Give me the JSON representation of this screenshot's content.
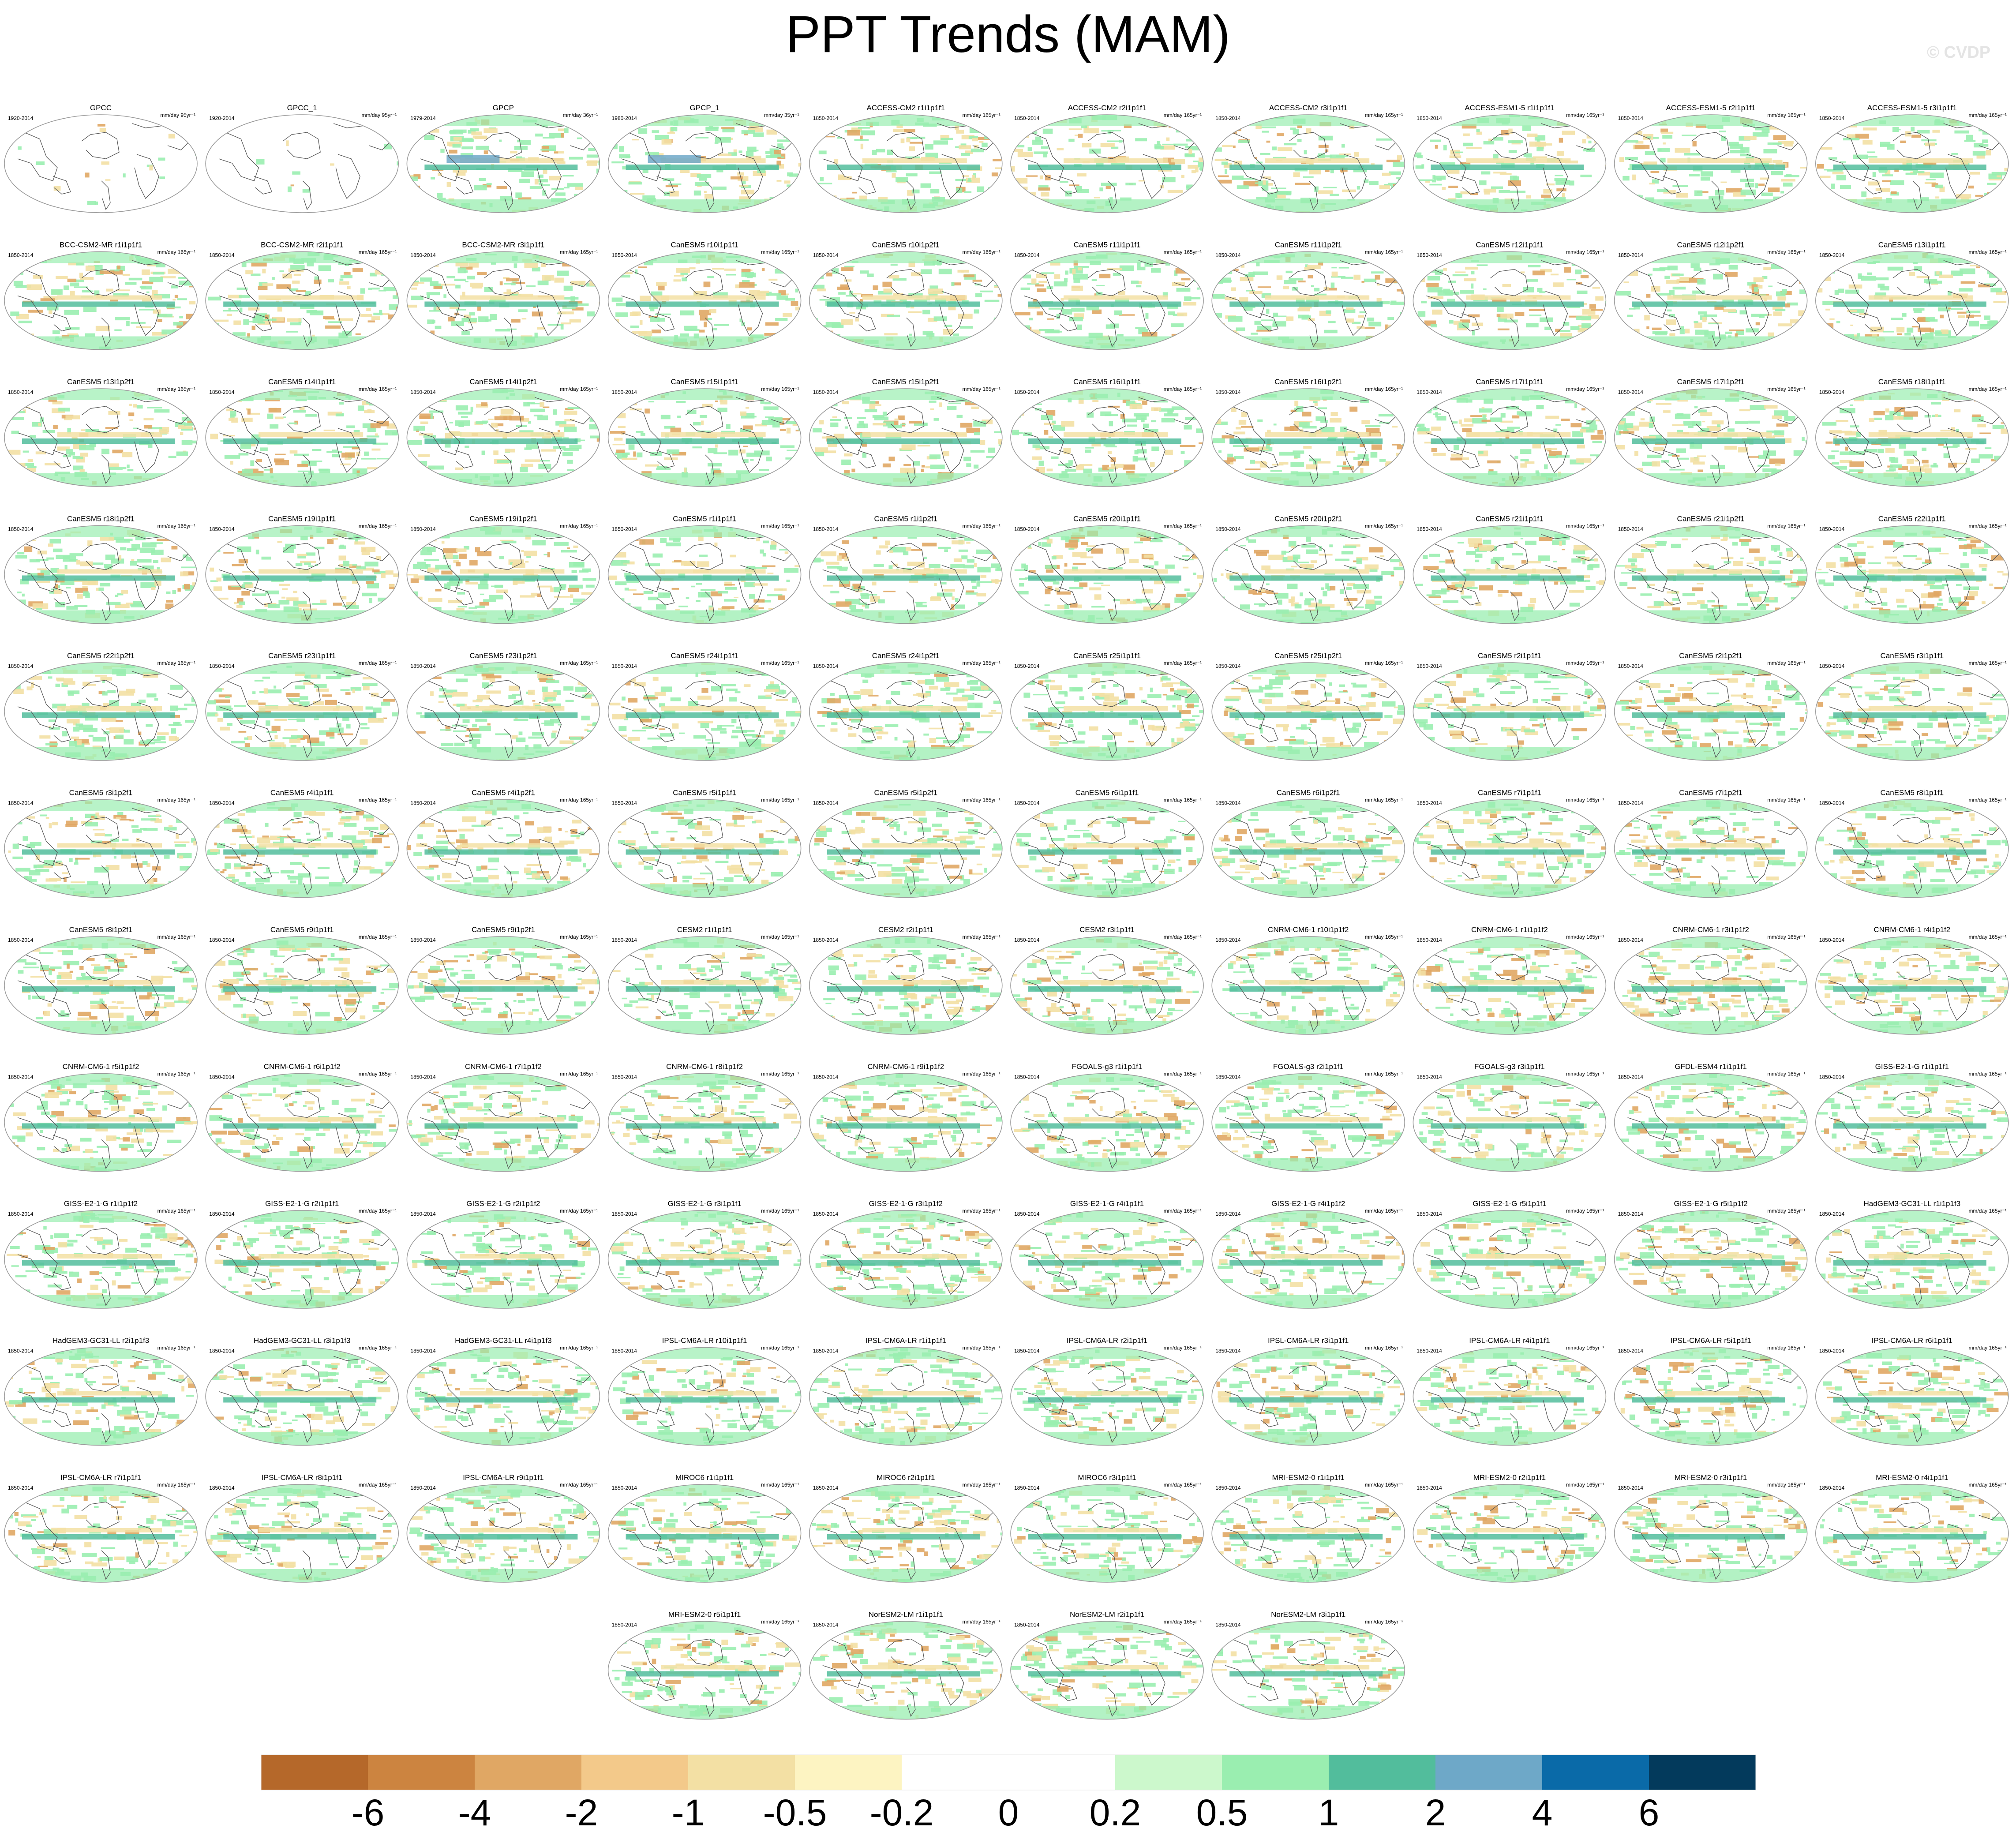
{
  "title": "PPT Trends (MAM)",
  "watermark": "© CVDP",
  "chart_data": {
    "type": "map-panels",
    "projection": "Robinson (global, centered on Pacific)",
    "variable": "Precipitation trend",
    "season": "MAM",
    "panels": [
      {
        "label": "GPCC",
        "period": "1920-2014",
        "units": "mm/day 95yr⁻¹"
      },
      {
        "label": "GPCC_1",
        "period": "1920-2014",
        "units": "mm/day 95yr⁻¹"
      },
      {
        "label": "GPCP",
        "period": "1979-2014",
        "units": "mm/day 36yr⁻¹"
      },
      {
        "label": "GPCP_1",
        "period": "1980-2014",
        "units": "mm/day 35yr⁻¹"
      },
      {
        "label": "ACCESS-CM2 r1i1p1f1",
        "period": "1850-2014",
        "units": "mm/day 165yr⁻¹"
      },
      {
        "label": "ACCESS-CM2 r2i1p1f1",
        "period": "1850-2014",
        "units": "mm/day 165yr⁻¹"
      },
      {
        "label": "ACCESS-CM2 r3i1p1f1",
        "period": "1850-2014",
        "units": "mm/day 165yr⁻¹"
      },
      {
        "label": "ACCESS-ESM1-5 r1i1p1f1",
        "period": "1850-2014",
        "units": "mm/day 165yr⁻¹"
      },
      {
        "label": "ACCESS-ESM1-5 r2i1p1f1",
        "period": "1850-2014",
        "units": "mm/day 165yr⁻¹"
      },
      {
        "label": "ACCESS-ESM1-5 r3i1p1f1",
        "period": "1850-2014",
        "units": "mm/day 165yr⁻¹"
      },
      {
        "label": "BCC-CSM2-MR r1i1p1f1",
        "period": "1850-2014",
        "units": "mm/day 165yr⁻¹"
      },
      {
        "label": "BCC-CSM2-MR r2i1p1f1",
        "period": "1850-2014",
        "units": "mm/day 165yr⁻¹"
      },
      {
        "label": "BCC-CSM2-MR r3i1p1f1",
        "period": "1850-2014",
        "units": "mm/day 165yr⁻¹"
      },
      {
        "label": "CanESM5 r10i1p1f1",
        "period": "1850-2014",
        "units": "mm/day 165yr⁻¹"
      },
      {
        "label": "CanESM5 r10i1p2f1",
        "period": "1850-2014",
        "units": "mm/day 165yr⁻¹"
      },
      {
        "label": "CanESM5 r11i1p1f1",
        "period": "1850-2014",
        "units": "mm/day 165yr⁻¹"
      },
      {
        "label": "CanESM5 r11i1p2f1",
        "period": "1850-2014",
        "units": "mm/day 165yr⁻¹"
      },
      {
        "label": "CanESM5 r12i1p1f1",
        "period": "1850-2014",
        "units": "mm/day 165yr⁻¹"
      },
      {
        "label": "CanESM5 r12i1p2f1",
        "period": "1850-2014",
        "units": "mm/day 165yr⁻¹"
      },
      {
        "label": "CanESM5 r13i1p1f1",
        "period": "1850-2014",
        "units": "mm/day 165yr⁻¹"
      },
      {
        "label": "CanESM5 r13i1p2f1",
        "period": "1850-2014",
        "units": "mm/day 165yr⁻¹"
      },
      {
        "label": "CanESM5 r14i1p1f1",
        "period": "1850-2014",
        "units": "mm/day 165yr⁻¹"
      },
      {
        "label": "CanESM5 r14i1p2f1",
        "period": "1850-2014",
        "units": "mm/day 165yr⁻¹"
      },
      {
        "label": "CanESM5 r15i1p1f1",
        "period": "1850-2014",
        "units": "mm/day 165yr⁻¹"
      },
      {
        "label": "CanESM5 r15i1p2f1",
        "period": "1850-2014",
        "units": "mm/day 165yr⁻¹"
      },
      {
        "label": "CanESM5 r16i1p1f1",
        "period": "1850-2014",
        "units": "mm/day 165yr⁻¹"
      },
      {
        "label": "CanESM5 r16i1p2f1",
        "period": "1850-2014",
        "units": "mm/day 165yr⁻¹"
      },
      {
        "label": "CanESM5 r17i1p1f1",
        "period": "1850-2014",
        "units": "mm/day 165yr⁻¹"
      },
      {
        "label": "CanESM5 r17i1p2f1",
        "period": "1850-2014",
        "units": "mm/day 165yr⁻¹"
      },
      {
        "label": "CanESM5 r18i1p1f1",
        "period": "1850-2014",
        "units": "mm/day 165yr⁻¹"
      },
      {
        "label": "CanESM5 r18i1p2f1",
        "period": "1850-2014",
        "units": "mm/day 165yr⁻¹"
      },
      {
        "label": "CanESM5 r19i1p1f1",
        "period": "1850-2014",
        "units": "mm/day 165yr⁻¹"
      },
      {
        "label": "CanESM5 r19i1p2f1",
        "period": "1850-2014",
        "units": "mm/day 165yr⁻¹"
      },
      {
        "label": "CanESM5 r1i1p1f1",
        "period": "1850-2014",
        "units": "mm/day 165yr⁻¹"
      },
      {
        "label": "CanESM5 r1i1p2f1",
        "period": "1850-2014",
        "units": "mm/day 165yr⁻¹"
      },
      {
        "label": "CanESM5 r20i1p1f1",
        "period": "1850-2014",
        "units": "mm/day 165yr⁻¹"
      },
      {
        "label": "CanESM5 r20i1p2f1",
        "period": "1850-2014",
        "units": "mm/day 165yr⁻¹"
      },
      {
        "label": "CanESM5 r21i1p1f1",
        "period": "1850-2014",
        "units": "mm/day 165yr⁻¹"
      },
      {
        "label": "CanESM5 r21i1p2f1",
        "period": "1850-2014",
        "units": "mm/day 165yr⁻¹"
      },
      {
        "label": "CanESM5 r22i1p1f1",
        "period": "1850-2014",
        "units": "mm/day 165yr⁻¹"
      },
      {
        "label": "CanESM5 r22i1p2f1",
        "period": "1850-2014",
        "units": "mm/day 165yr⁻¹"
      },
      {
        "label": "CanESM5 r23i1p1f1",
        "period": "1850-2014",
        "units": "mm/day 165yr⁻¹"
      },
      {
        "label": "CanESM5 r23i1p2f1",
        "period": "1850-2014",
        "units": "mm/day 165yr⁻¹"
      },
      {
        "label": "CanESM5 r24i1p1f1",
        "period": "1850-2014",
        "units": "mm/day 165yr⁻¹"
      },
      {
        "label": "CanESM5 r24i1p2f1",
        "period": "1850-2014",
        "units": "mm/day 165yr⁻¹"
      },
      {
        "label": "CanESM5 r25i1p1f1",
        "period": "1850-2014",
        "units": "mm/day 165yr⁻¹"
      },
      {
        "label": "CanESM5 r25i1p2f1",
        "period": "1850-2014",
        "units": "mm/day 165yr⁻¹"
      },
      {
        "label": "CanESM5 r2i1p1f1",
        "period": "1850-2014",
        "units": "mm/day 165yr⁻¹"
      },
      {
        "label": "CanESM5 r2i1p2f1",
        "period": "1850-2014",
        "units": "mm/day 165yr⁻¹"
      },
      {
        "label": "CanESM5 r3i1p1f1",
        "period": "1850-2014",
        "units": "mm/day 165yr⁻¹"
      },
      {
        "label": "CanESM5 r3i1p2f1",
        "period": "1850-2014",
        "units": "mm/day 165yr⁻¹"
      },
      {
        "label": "CanESM5 r4i1p1f1",
        "period": "1850-2014",
        "units": "mm/day 165yr⁻¹"
      },
      {
        "label": "CanESM5 r4i1p2f1",
        "period": "1850-2014",
        "units": "mm/day 165yr⁻¹"
      },
      {
        "label": "CanESM5 r5i1p1f1",
        "period": "1850-2014",
        "units": "mm/day 165yr⁻¹"
      },
      {
        "label": "CanESM5 r5i1p2f1",
        "period": "1850-2014",
        "units": "mm/day 165yr⁻¹"
      },
      {
        "label": "CanESM5 r6i1p1f1",
        "period": "1850-2014",
        "units": "mm/day 165yr⁻¹"
      },
      {
        "label": "CanESM5 r6i1p2f1",
        "period": "1850-2014",
        "units": "mm/day 165yr⁻¹"
      },
      {
        "label": "CanESM5 r7i1p1f1",
        "period": "1850-2014",
        "units": "mm/day 165yr⁻¹"
      },
      {
        "label": "CanESM5 r7i1p2f1",
        "period": "1850-2014",
        "units": "mm/day 165yr⁻¹"
      },
      {
        "label": "CanESM5 r8i1p1f1",
        "period": "1850-2014",
        "units": "mm/day 165yr⁻¹"
      },
      {
        "label": "CanESM5 r8i1p2f1",
        "period": "1850-2014",
        "units": "mm/day 165yr⁻¹"
      },
      {
        "label": "CanESM5 r9i1p1f1",
        "period": "1850-2014",
        "units": "mm/day 165yr⁻¹"
      },
      {
        "label": "CanESM5 r9i1p2f1",
        "period": "1850-2014",
        "units": "mm/day 165yr⁻¹"
      },
      {
        "label": "CESM2 r1i1p1f1",
        "period": "1850-2014",
        "units": "mm/day 165yr⁻¹"
      },
      {
        "label": "CESM2 r2i1p1f1",
        "period": "1850-2014",
        "units": "mm/day 165yr⁻¹"
      },
      {
        "label": "CESM2 r3i1p1f1",
        "period": "1850-2014",
        "units": "mm/day 165yr⁻¹"
      },
      {
        "label": "CNRM-CM6-1 r10i1p1f2",
        "period": "1850-2014",
        "units": "mm/day 165yr⁻¹"
      },
      {
        "label": "CNRM-CM6-1 r1i1p1f2",
        "period": "1850-2014",
        "units": "mm/day 165yr⁻¹"
      },
      {
        "label": "CNRM-CM6-1 r3i1p1f2",
        "period": "1850-2014",
        "units": "mm/day 165yr⁻¹"
      },
      {
        "label": "CNRM-CM6-1 r4i1p1f2",
        "period": "1850-2014",
        "units": "mm/day 165yr⁻¹"
      },
      {
        "label": "CNRM-CM6-1 r5i1p1f2",
        "period": "1850-2014",
        "units": "mm/day 165yr⁻¹"
      },
      {
        "label": "CNRM-CM6-1 r6i1p1f2",
        "period": "1850-2014",
        "units": "mm/day 165yr⁻¹"
      },
      {
        "label": "CNRM-CM6-1 r7i1p1f2",
        "period": "1850-2014",
        "units": "mm/day 165yr⁻¹"
      },
      {
        "label": "CNRM-CM6-1 r8i1p1f2",
        "period": "1850-2014",
        "units": "mm/day 165yr⁻¹"
      },
      {
        "label": "CNRM-CM6-1 r9i1p1f2",
        "period": "1850-2014",
        "units": "mm/day 165yr⁻¹"
      },
      {
        "label": "FGOALS-g3 r1i1p1f1",
        "period": "1850-2014",
        "units": "mm/day 165yr⁻¹"
      },
      {
        "label": "FGOALS-g3 r2i1p1f1",
        "period": "1850-2014",
        "units": "mm/day 165yr⁻¹"
      },
      {
        "label": "FGOALS-g3 r3i1p1f1",
        "period": "1850-2014",
        "units": "mm/day 165yr⁻¹"
      },
      {
        "label": "GFDL-ESM4 r1i1p1f1",
        "period": "1850-2014",
        "units": "mm/day 165yr⁻¹"
      },
      {
        "label": "GISS-E2-1-G r1i1p1f1",
        "period": "1850-2014",
        "units": "mm/day 165yr⁻¹"
      },
      {
        "label": "GISS-E2-1-G r1i1p1f2",
        "period": "1850-2014",
        "units": "mm/day 165yr⁻¹"
      },
      {
        "label": "GISS-E2-1-G r2i1p1f1",
        "period": "1850-2014",
        "units": "mm/day 165yr⁻¹"
      },
      {
        "label": "GISS-E2-1-G r2i1p1f2",
        "period": "1850-2014",
        "units": "mm/day 165yr⁻¹"
      },
      {
        "label": "GISS-E2-1-G r3i1p1f1",
        "period": "1850-2014",
        "units": "mm/day 165yr⁻¹"
      },
      {
        "label": "GISS-E2-1-G r3i1p1f2",
        "period": "1850-2014",
        "units": "mm/day 165yr⁻¹"
      },
      {
        "label": "GISS-E2-1-G r4i1p1f1",
        "period": "1850-2014",
        "units": "mm/day 165yr⁻¹"
      },
      {
        "label": "GISS-E2-1-G r4i1p1f2",
        "period": "1850-2014",
        "units": "mm/day 165yr⁻¹"
      },
      {
        "label": "GISS-E2-1-G r5i1p1f1",
        "period": "1850-2014",
        "units": "mm/day 165yr⁻¹"
      },
      {
        "label": "GISS-E2-1-G r5i1p1f2",
        "period": "1850-2014",
        "units": "mm/day 165yr⁻¹"
      },
      {
        "label": "HadGEM3-GC31-LL r1i1p1f3",
        "period": "1850-2014",
        "units": "mm/day 165yr⁻¹"
      },
      {
        "label": "HadGEM3-GC31-LL r2i1p1f3",
        "period": "1850-2014",
        "units": "mm/day 165yr⁻¹"
      },
      {
        "label": "HadGEM3-GC31-LL r3i1p1f3",
        "period": "1850-2014",
        "units": "mm/day 165yr⁻¹"
      },
      {
        "label": "HadGEM3-GC31-LL r4i1p1f3",
        "period": "1850-2014",
        "units": "mm/day 165yr⁻¹"
      },
      {
        "label": "IPSL-CM6A-LR r10i1p1f1",
        "period": "1850-2014",
        "units": "mm/day 165yr⁻¹"
      },
      {
        "label": "IPSL-CM6A-LR r1i1p1f1",
        "period": "1850-2014",
        "units": "mm/day 165yr⁻¹"
      },
      {
        "label": "IPSL-CM6A-LR r2i1p1f1",
        "period": "1850-2014",
        "units": "mm/day 165yr⁻¹"
      },
      {
        "label": "IPSL-CM6A-LR r3i1p1f1",
        "period": "1850-2014",
        "units": "mm/day 165yr⁻¹"
      },
      {
        "label": "IPSL-CM6A-LR r4i1p1f1",
        "period": "1850-2014",
        "units": "mm/day 165yr⁻¹"
      },
      {
        "label": "IPSL-CM6A-LR r5i1p1f1",
        "period": "1850-2014",
        "units": "mm/day 165yr⁻¹"
      },
      {
        "label": "IPSL-CM6A-LR r6i1p1f1",
        "period": "1850-2014",
        "units": "mm/day 165yr⁻¹"
      },
      {
        "label": "IPSL-CM6A-LR r7i1p1f1",
        "period": "1850-2014",
        "units": "mm/day 165yr⁻¹"
      },
      {
        "label": "IPSL-CM6A-LR r8i1p1f1",
        "period": "1850-2014",
        "units": "mm/day 165yr⁻¹"
      },
      {
        "label": "IPSL-CM6A-LR r9i1p1f1",
        "period": "1850-2014",
        "units": "mm/day 165yr⁻¹"
      },
      {
        "label": "MIROC6 r1i1p1f1",
        "period": "1850-2014",
        "units": "mm/day 165yr⁻¹"
      },
      {
        "label": "MIROC6 r2i1p1f1",
        "period": "1850-2014",
        "units": "mm/day 165yr⁻¹"
      },
      {
        "label": "MIROC6 r3i1p1f1",
        "period": "1850-2014",
        "units": "mm/day 165yr⁻¹"
      },
      {
        "label": "MRI-ESM2-0 r1i1p1f1",
        "period": "1850-2014",
        "units": "mm/day 165yr⁻¹"
      },
      {
        "label": "MRI-ESM2-0 r2i1p1f1",
        "period": "1850-2014",
        "units": "mm/day 165yr⁻¹"
      },
      {
        "label": "MRI-ESM2-0 r3i1p1f1",
        "period": "1850-2014",
        "units": "mm/day 165yr⁻¹"
      },
      {
        "label": "MRI-ESM2-0 r4i1p1f1",
        "period": "1850-2014",
        "units": "mm/day 165yr⁻¹"
      },
      {
        "label": "MRI-ESM2-0 r5i1p1f1",
        "period": "1850-2014",
        "units": "mm/day 165yr⁻¹"
      },
      {
        "label": "NorESM2-LM r1i1p1f1",
        "period": "1850-2014",
        "units": "mm/day 165yr⁻¹"
      },
      {
        "label": "NorESM2-LM r2i1p1f1",
        "period": "1850-2014",
        "units": "mm/day 165yr⁻¹"
      },
      {
        "label": "NorESM2-LM r3i1p1f1",
        "period": "1850-2014",
        "units": "mm/day 165yr⁻¹"
      }
    ],
    "colorbar": {
      "levels": [
        "-6",
        "-4",
        "-2",
        "-1",
        "-0.5",
        "-0.2",
        "0",
        "0.2",
        "0.5",
        "1",
        "2",
        "4",
        "6"
      ],
      "colors": [
        "#b5682a",
        "#cc8440",
        "#e0a764",
        "#f3c98a",
        "#f3e0a4",
        "#fdf4c2",
        "#ffffff",
        "#ffffff",
        "#ccf8cc",
        "#9aeeb0",
        "#52bd9c",
        "#6ea8c8",
        "#0a6aa8",
        "#033a5c"
      ],
      "orientation": "horizontal",
      "position": "bottom"
    },
    "palette": {
      "ocean_blank": "#ffffff",
      "coast": "#555555",
      "map_outline": "#9a9a9a",
      "trend_positive": "#9aeeb0",
      "trend_strong_positive": "#52bd9c",
      "trend_negative": "#f3e0a4",
      "trend_strong_negative": "#e0a764"
    }
  }
}
